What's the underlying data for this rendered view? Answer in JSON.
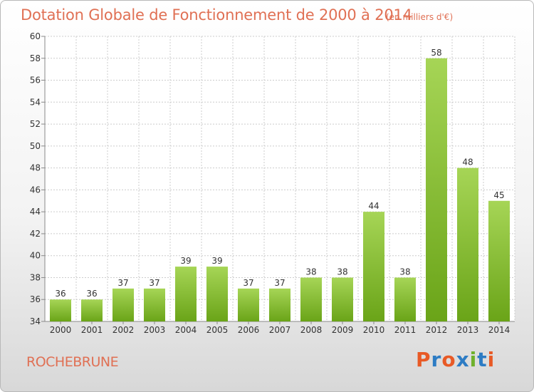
{
  "header": {
    "title": "Dotation Globale de Fonctionnement de 2000 à 2014",
    "subtitle": "(en milliers d'€)"
  },
  "footer": {
    "commune": "ROCHEBRUNE",
    "logo_text": "Proxiti"
  },
  "colors": {
    "title": "#e07054",
    "bar_light": "#a6d556",
    "bar_dark": "#6aa418",
    "grid": "#cccccc",
    "axis_text": "#333333",
    "logo": [
      "#e85a26",
      "#2d7cc4",
      "#e85a26",
      "#2d7cc4",
      "#6fb12c",
      "#2d7cc4",
      "#e85a26"
    ]
  },
  "chart_data": {
    "type": "bar",
    "title": "Dotation Globale de Fonctionnement de 2000 à 2014",
    "subtitle": "(en milliers d'€)",
    "xlabel": "",
    "ylabel": "",
    "categories": [
      "2000",
      "2001",
      "2002",
      "2003",
      "2004",
      "2005",
      "2006",
      "2007",
      "2008",
      "2009",
      "2010",
      "2011",
      "2012",
      "2013",
      "2014"
    ],
    "values": [
      36,
      36,
      37,
      37,
      39,
      39,
      37,
      37,
      38,
      38,
      44,
      38,
      58,
      48,
      45
    ],
    "yticks": [
      34,
      36,
      38,
      40,
      42,
      44,
      46,
      48,
      50,
      52,
      54,
      56,
      58,
      60
    ],
    "ylim": [
      34,
      60
    ],
    "grid": true,
    "legend": "none"
  }
}
